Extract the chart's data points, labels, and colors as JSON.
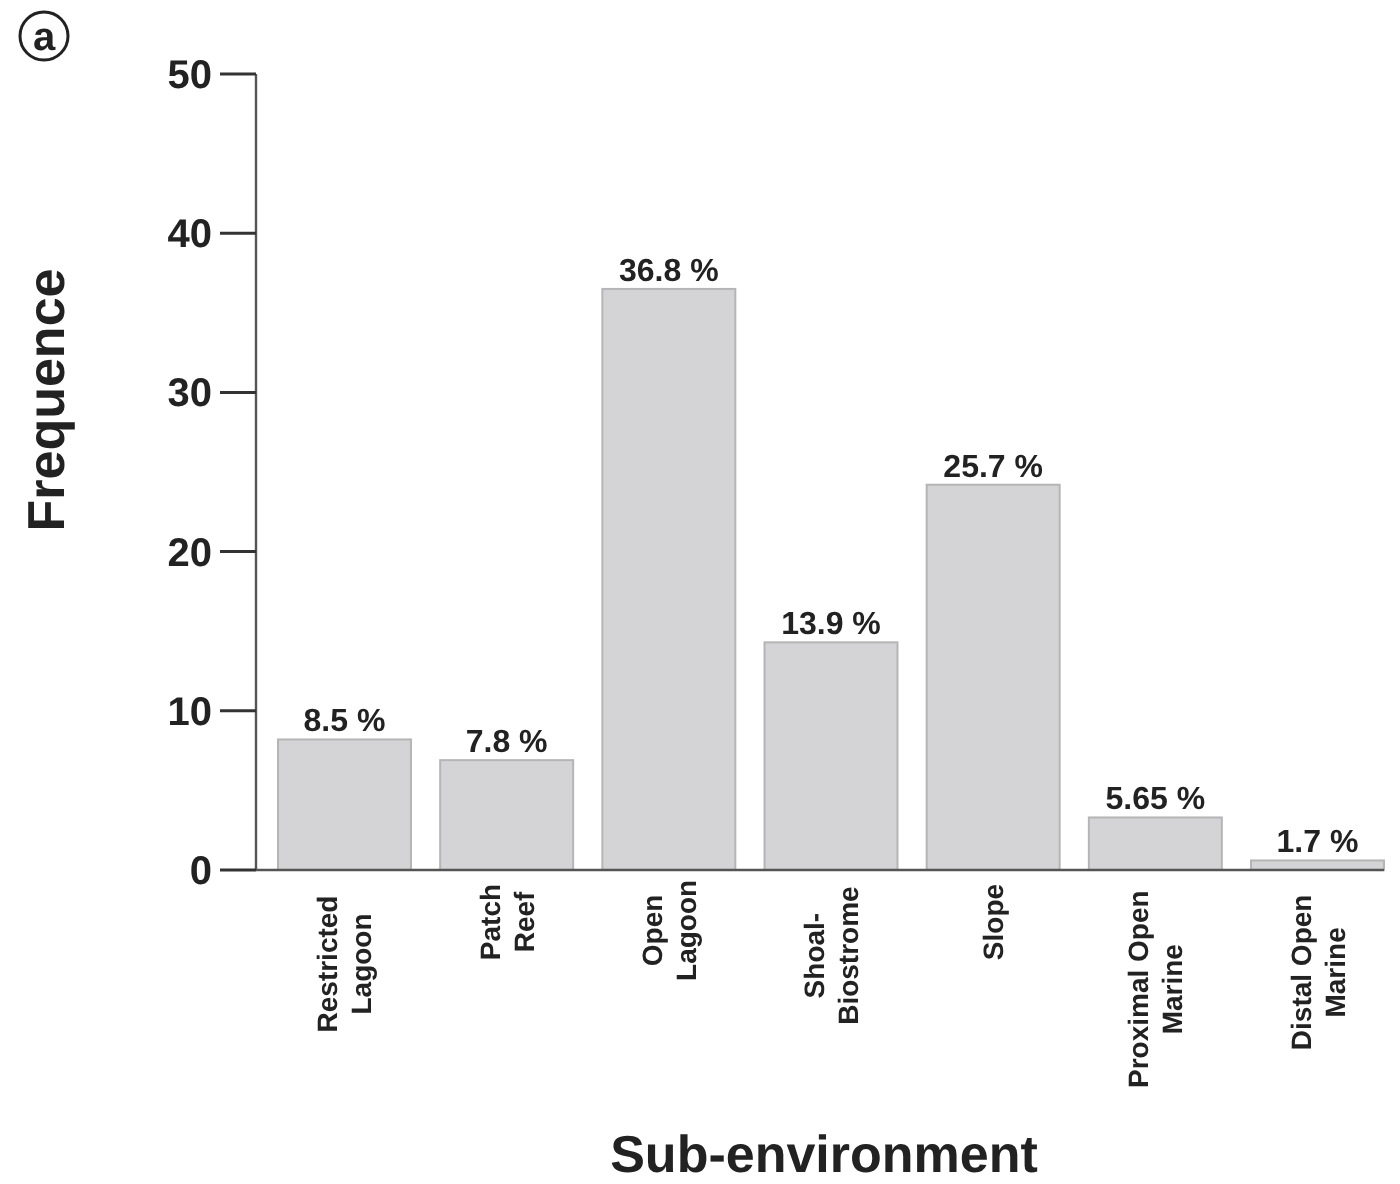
{
  "chart_data": {
    "type": "bar",
    "xlabel": "Sub-environment",
    "ylabel": "Frequence",
    "annotations": [
      "a",
      {
        "text": "8.5 %",
        "x": "Restricted\nLagoon",
        "y": 8.2
      },
      {
        "text": "7.8 %",
        "x": "Patch\nReef",
        "y": 6.9
      },
      {
        "text": "36.8 %",
        "x": "Open\nLagoon",
        "y": 36.5
      },
      {
        "text": "13.9 %",
        "x": "Shoal-\nBiostrome",
        "y": 14.3
      },
      {
        "text": "25.7 %",
        "x": "Slope",
        "y": 24.2
      },
      {
        "text": "5.65 %",
        "x": "Proximal Open\nMarine",
        "y": 3.3
      },
      {
        "text": "1.7 %",
        "x": "Distal Open\nMarine",
        "y": 0.6
      }
    ],
    "categories": [
      "Restricted\nLagoon",
      "Patch\nReef",
      "Open\nLagoon",
      "Shoal-\nBiostrome",
      "Slope",
      "Proximal Open\nMarine",
      "Distal Open\nMarine"
    ],
    "values": [
      8.2,
      6.9,
      36.5,
      14.3,
      24.2,
      3.3,
      0.6
    ],
    "color": "#d4d3d5",
    "ylim": [
      0,
      50
    ],
    "yticks": [
      0,
      10,
      20,
      30,
      40,
      50
    ]
  }
}
